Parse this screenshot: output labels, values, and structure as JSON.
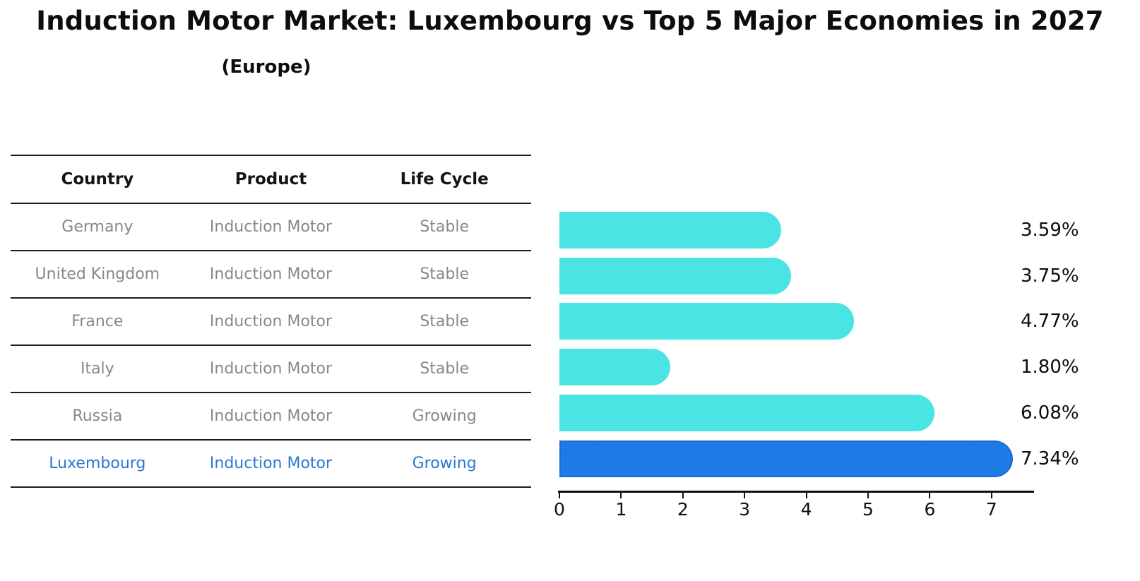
{
  "title": "Induction Motor Market: Luxembourg vs Top 5 Major Economies in 2027",
  "subtitle": "(Europe)",
  "table": {
    "headers": [
      "Country",
      "Product",
      "Life Cycle"
    ],
    "rows": [
      {
        "country": "Germany",
        "product": "Induction Motor",
        "life_cycle": "Stable"
      },
      {
        "country": "United Kingdom",
        "product": "Induction Motor",
        "life_cycle": "Stable"
      },
      {
        "country": "France",
        "product": "Induction Motor",
        "life_cycle": "Stable"
      },
      {
        "country": "Italy",
        "product": "Induction Motor",
        "life_cycle": "Stable"
      },
      {
        "country": "Russia",
        "product": "Induction Motor",
        "life_cycle": "Growing"
      },
      {
        "country": "Luxembourg",
        "product": "Induction Motor",
        "life_cycle": "Growing"
      }
    ],
    "highlight_row_index": 5
  },
  "chart_data": {
    "type": "bar",
    "orientation": "horizontal",
    "title": "Induction Motor Market: Luxembourg vs Top 5 Major Economies in 2027 (Europe)",
    "categories": [
      "Germany",
      "United Kingdom",
      "France",
      "Italy",
      "Russia",
      "Luxembourg"
    ],
    "values": [
      3.59,
      3.75,
      4.77,
      1.8,
      6.08,
      7.34
    ],
    "value_labels": [
      "3.59%",
      "3.75%",
      "4.77%",
      "1.80%",
      "6.08%",
      "7.34%"
    ],
    "x_ticks": [
      "0",
      "1",
      "2",
      "3",
      "4",
      "5",
      "6",
      "7"
    ],
    "xlim": [
      0,
      7.65
    ],
    "grid": false,
    "legend": false,
    "highlight_index": 5,
    "colors": {
      "bar": "#4BE4E4",
      "highlight_bar": "#1E7AE5",
      "highlight_border": "#0d5ecf",
      "highlight_text": "#2979d0",
      "row_text": "#888888",
      "header_text": "#141414",
      "axis": "#111111"
    }
  }
}
